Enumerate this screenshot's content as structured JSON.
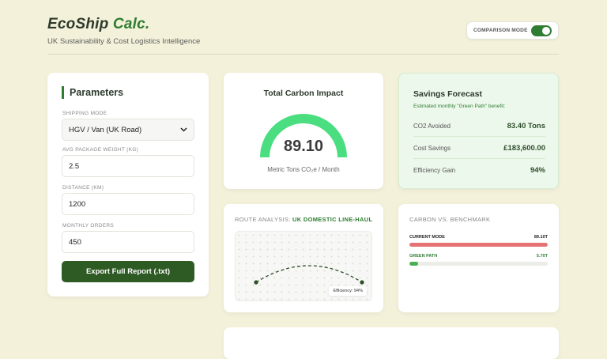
{
  "header": {
    "brand_main": "EcoShip",
    "brand_accent": "Calc.",
    "tagline": "UK Sustainability & Cost Logistics Intelligence",
    "comparison_toggle": {
      "label": "COMPARISON MODE",
      "on": true
    }
  },
  "parameters": {
    "title": "Parameters",
    "shipping_mode": {
      "label": "SHIPPING MODE",
      "value": "HGV / Van (UK Road)"
    },
    "avg_weight": {
      "label": "AVG PACKAGE WEIGHT (KG)",
      "value": "2.5"
    },
    "distance": {
      "label": "DISTANCE (KM)",
      "value": "1200"
    },
    "monthly_orders": {
      "label": "MONTHLY ORDERS",
      "value": "450"
    },
    "export_label": "Export Full Report (.txt)"
  },
  "impact": {
    "title": "Total Carbon Impact",
    "value": "89.10",
    "unit": "Metric Tons CO₂e / Month"
  },
  "forecast": {
    "title": "Savings Forecast",
    "subtitle": "Estimated monthly \"Green Path\" benefit:",
    "rows": [
      {
        "label": "CO2 Avoided",
        "value": "83.40 Tons"
      },
      {
        "label": "Cost Savings",
        "value": "£183,600.00"
      },
      {
        "label": "Efficiency Gain",
        "value": "94%"
      }
    ]
  },
  "route": {
    "title_prefix": "ROUTE ANALYSIS:",
    "title_highlight": "UK DOMESTIC LINE-HAUL",
    "efficiency_badge": "Efficiency: 94%"
  },
  "benchmark": {
    "title": "CARBON VS. BENCHMARK",
    "rows": [
      {
        "label": "CURRENT MODE",
        "value": "89.10T",
        "level": 1.0,
        "color": "#e57373",
        "label_color": "#222222"
      },
      {
        "label": "GREEN PATH",
        "value": "5.70T",
        "level": 0.064,
        "color": "#4caf50",
        "label_color": "#2e7d32"
      }
    ]
  },
  "colors": {
    "accent": "#2e7d32",
    "gauge": "#4ade80",
    "background": "#f3f1d9"
  }
}
